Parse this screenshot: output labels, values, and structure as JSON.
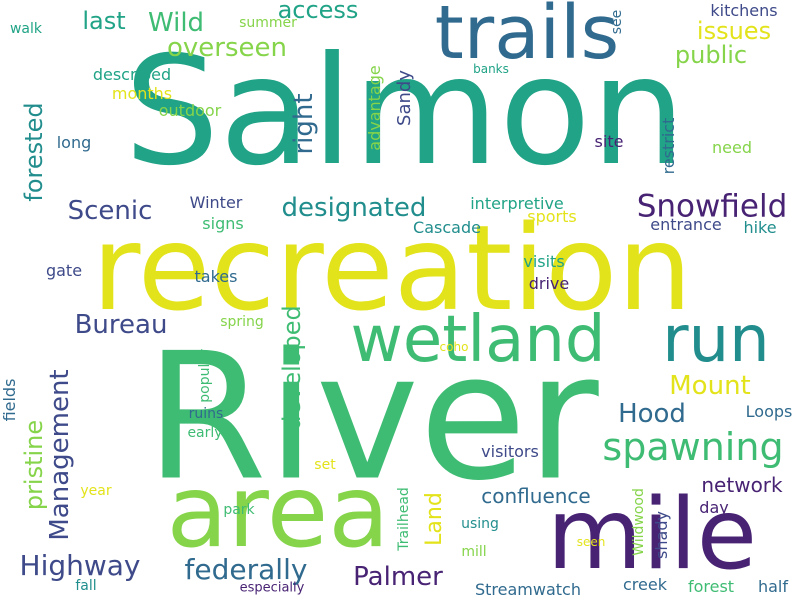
{
  "colors": {
    "background": "#ffffff",
    "palette": {
      "yellow": "#e3e31b",
      "lime": "#85d44a",
      "green": "#3fbc73",
      "teal": "#20a386",
      "cyan": "#218e8d",
      "blue": "#306a8e",
      "indigo": "#3e4a89",
      "purple": "#482374"
    }
  },
  "words": [
    {
      "text": "Salmon",
      "color": "#20a386"
    },
    {
      "text": "River",
      "color": "#3fbc73"
    },
    {
      "text": "recreation",
      "color": "#e3e31b"
    },
    {
      "text": "mile",
      "color": "#482374"
    },
    {
      "text": "area",
      "color": "#85d44a"
    },
    {
      "text": "trails",
      "color": "#306a8e"
    },
    {
      "text": "wetland",
      "color": "#3fbc73"
    },
    {
      "text": "run",
      "color": "#218e8d"
    },
    {
      "text": "spawning",
      "color": "#3fbc73"
    },
    {
      "text": "Snowfield",
      "color": "#482374"
    },
    {
      "text": "designated",
      "color": "#218e8d"
    },
    {
      "text": "Highway",
      "color": "#3e4a89"
    },
    {
      "text": "federally",
      "color": "#306a8e"
    },
    {
      "text": "Palmer",
      "color": "#482374"
    },
    {
      "text": "Scenic",
      "color": "#3e4a89"
    },
    {
      "text": "Bureau",
      "color": "#3e4a89"
    },
    {
      "text": "Hood",
      "color": "#306a8e"
    },
    {
      "text": "Mount",
      "color": "#e3e31b"
    },
    {
      "text": "Wild",
      "color": "#3fbc73"
    },
    {
      "text": "overseen",
      "color": "#85d44a"
    },
    {
      "text": "access",
      "color": "#20a386"
    },
    {
      "text": "issues",
      "color": "#e3e31b"
    },
    {
      "text": "public",
      "color": "#85d44a"
    },
    {
      "text": "last",
      "color": "#20a386"
    },
    {
      "text": "forested",
      "color": "#218e8d"
    },
    {
      "text": "right",
      "color": "#306a8e"
    },
    {
      "text": "Management",
      "color": "#3e4a89"
    },
    {
      "text": "developed",
      "color": "#3fbc73"
    },
    {
      "text": "pristine",
      "color": "#85d44a"
    },
    {
      "text": "Land",
      "color": "#e3e31b"
    },
    {
      "text": "confluence",
      "color": "#306a8e"
    },
    {
      "text": "network",
      "color": "#482374"
    },
    {
      "text": "Sandy",
      "color": "#3e4a89"
    },
    {
      "text": "advantage",
      "color": "#85d44a"
    },
    {
      "text": "Cascade",
      "color": "#218e8d"
    },
    {
      "text": "Winter",
      "color": "#3e4a89"
    },
    {
      "text": "interpretive",
      "color": "#20a386"
    },
    {
      "text": "sports",
      "color": "#e3e31b"
    },
    {
      "text": "entrance",
      "color": "#3e4a89"
    },
    {
      "text": "hike",
      "color": "#218e8d"
    },
    {
      "text": "restrict",
      "color": "#306a8e"
    },
    {
      "text": "need",
      "color": "#85d44a"
    },
    {
      "text": "site",
      "color": "#482374"
    },
    {
      "text": "kitchens",
      "color": "#3e4a89"
    },
    {
      "text": "see",
      "color": "#306a8e"
    },
    {
      "text": "summer",
      "color": "#85d44a"
    },
    {
      "text": "walk",
      "color": "#20a386"
    },
    {
      "text": "described",
      "color": "#20a386"
    },
    {
      "text": "months",
      "color": "#e3e31b"
    },
    {
      "text": "outdoor",
      "color": "#85d44a"
    },
    {
      "text": "long",
      "color": "#306a8e"
    },
    {
      "text": "banks",
      "color": "#20a386"
    },
    {
      "text": "signs",
      "color": "#3fbc73"
    },
    {
      "text": "gate",
      "color": "#3e4a89"
    },
    {
      "text": "takes",
      "color": "#306a8e"
    },
    {
      "text": "visits",
      "color": "#20a386"
    },
    {
      "text": "drive",
      "color": "#482374"
    },
    {
      "text": "spring",
      "color": "#85d44a"
    },
    {
      "text": "popular",
      "color": "#3fbc73"
    },
    {
      "text": "coho",
      "color": "#e3e31b"
    },
    {
      "text": "ruins",
      "color": "#306a8e"
    },
    {
      "text": "early",
      "color": "#3fbc73"
    },
    {
      "text": "Loops",
      "color": "#306a8e"
    },
    {
      "text": "fields",
      "color": "#306a8e"
    },
    {
      "text": "visitors",
      "color": "#3e4a89"
    },
    {
      "text": "set",
      "color": "#e3e31b"
    },
    {
      "text": "year",
      "color": "#e3e31b"
    },
    {
      "text": "park",
      "color": "#3fbc73"
    },
    {
      "text": "Trailhead",
      "color": "#3fbc73"
    },
    {
      "text": "using",
      "color": "#218e8d"
    },
    {
      "text": "mill",
      "color": "#85d44a"
    },
    {
      "text": "Wildwood",
      "color": "#85d44a"
    },
    {
      "text": "shady",
      "color": "#3e4a89"
    },
    {
      "text": "day",
      "color": "#482374"
    },
    {
      "text": "seen",
      "color": "#e3e31b"
    },
    {
      "text": "half",
      "color": "#306a8e"
    },
    {
      "text": "fall",
      "color": "#218e8d"
    },
    {
      "text": "Streamwatch",
      "color": "#306a8e"
    },
    {
      "text": "creek",
      "color": "#306a8e"
    },
    {
      "text": "forest",
      "color": "#3fbc73"
    },
    {
      "text": "especially",
      "color": "#482374"
    }
  ]
}
